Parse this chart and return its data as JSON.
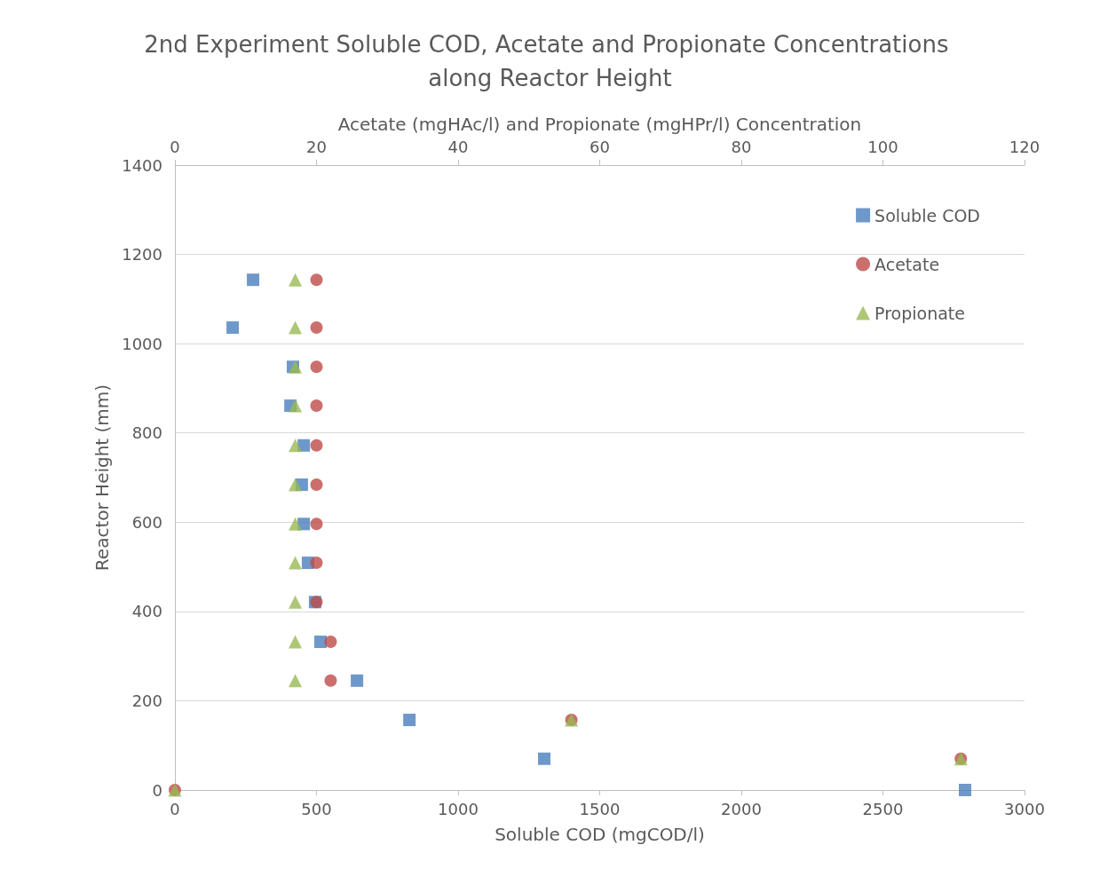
{
  "chart_data": {
    "type": "scatter",
    "title": "2nd Experiment Soluble COD, Acetate and Propionate Concentrations along Reactor Height",
    "xlabel": "Soluble COD (mgCOD/l)",
    "x2label": "Acetate (mgHAc/l) and Propionate (mgHPr/l) Concentration",
    "ylabel": "Reactor Height (mm)",
    "xlim": [
      0,
      3000
    ],
    "xticks": [
      0,
      500,
      1000,
      1500,
      2000,
      2500,
      3000
    ],
    "x2lim": [
      0,
      120
    ],
    "x2ticks": [
      0,
      20,
      40,
      60,
      80,
      100,
      120
    ],
    "ylim": [
      0,
      1400
    ],
    "yticks": [
      0,
      200,
      400,
      600,
      800,
      1000,
      1200,
      1400
    ],
    "grid": "y",
    "legend": "top right",
    "series": [
      {
        "name": "Soluble COD",
        "color": "#4a7ebb",
        "marker": "square",
        "x": [
          276,
          204,
          417,
          408,
          455,
          448,
          455,
          470,
          495,
          514,
          643,
          828,
          1304,
          2790
        ],
        "values": [
          1143,
          1036,
          948,
          861,
          772,
          684,
          596,
          509,
          421,
          332,
          245,
          157,
          70,
          0
        ]
      },
      {
        "name": "Acetate",
        "color": "#be4b48",
        "marker": "circle",
        "axis": "x2",
        "x": [
          20,
          20,
          20,
          20,
          20,
          20,
          20,
          20,
          20,
          22,
          22,
          56,
          111,
          0
        ],
        "values": [
          1143,
          1036,
          948,
          861,
          772,
          684,
          596,
          509,
          421,
          332,
          245,
          157,
          70,
          0
        ]
      },
      {
        "name": "Propionate",
        "color": "#98b954",
        "marker": "triangle",
        "axis": "x2",
        "x": [
          17,
          17,
          17,
          17,
          17,
          17,
          17,
          17,
          17,
          17,
          17,
          56,
          111,
          0
        ],
        "values": [
          1143,
          1036,
          948,
          861,
          772,
          684,
          596,
          509,
          421,
          332,
          245,
          157,
          70,
          0
        ]
      }
    ]
  }
}
